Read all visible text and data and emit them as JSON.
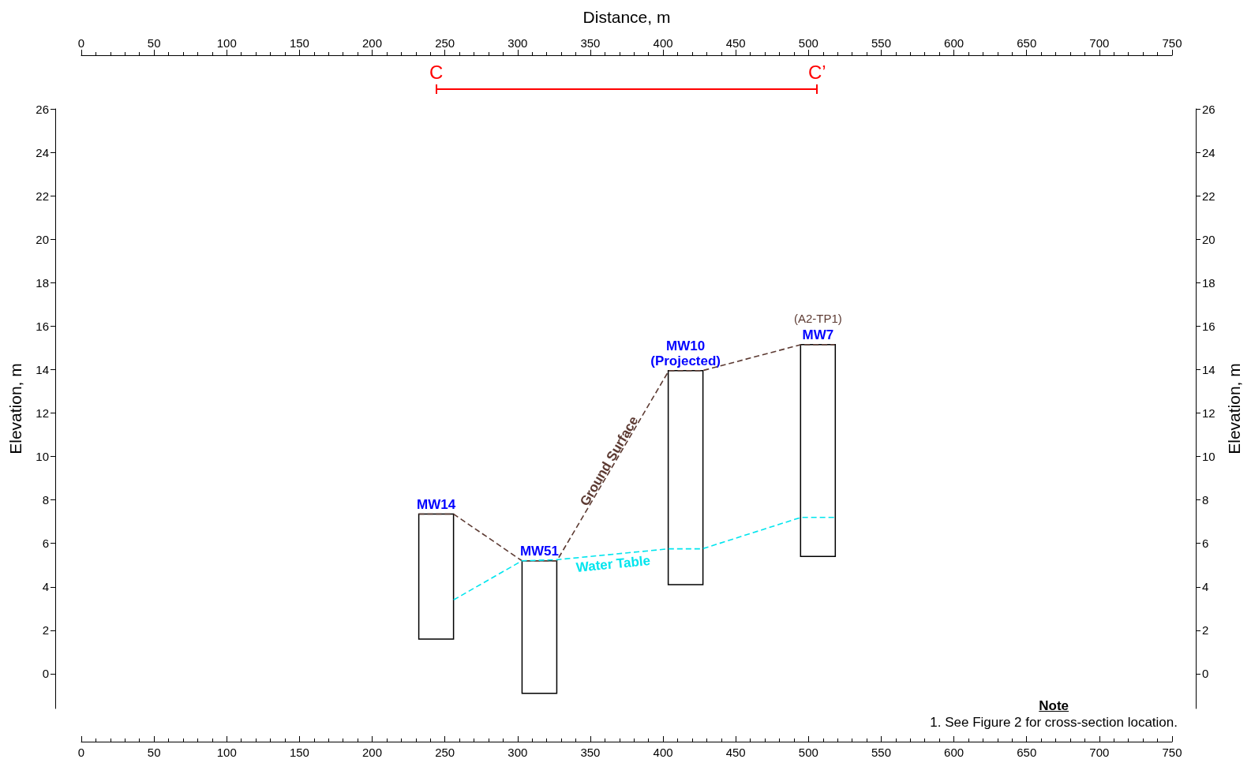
{
  "chart_data": {
    "type": "bar",
    "x2label": "Distance, m",
    "ylabel": "Elevation, m",
    "y2label": "Elevation, m",
    "xlim": [
      0,
      750
    ],
    "xticks": [
      0,
      50,
      100,
      150,
      200,
      250,
      300,
      350,
      400,
      450,
      500,
      550,
      600,
      650,
      700,
      750
    ],
    "x2lim": [
      0,
      750
    ],
    "x2ticks": [
      0,
      50,
      100,
      150,
      200,
      250,
      300,
      350,
      400,
      450,
      500,
      550,
      600,
      650,
      700,
      750
    ],
    "ylim": [
      -1.6,
      26
    ],
    "yticks": [
      0,
      2,
      4,
      6,
      8,
      10,
      12,
      14,
      16,
      18,
      20,
      22,
      24,
      26
    ],
    "y2lim": [
      -1.6,
      26
    ],
    "y2ticks": [
      0,
      2,
      4,
      6,
      8,
      10,
      12,
      14,
      16,
      18,
      20,
      22,
      24,
      26
    ],
    "series": [
      {
        "x": [
          244,
          315,
          415.5,
          506.5
        ],
        "base": [
          1.6,
          -0.9,
          4.1,
          5.4
        ],
        "values": [
          5.75,
          6.1,
          9.85,
          9.75
        ],
        "color": "#000000"
      },
      {
        "type": "line",
        "name": "Ground Surface",
        "color": "#5c3a32",
        "x": [
          232,
          256,
          303,
          327,
          404,
          427,
          495,
          518
        ],
        "values": [
          7.35,
          7.35,
          5.2,
          5.2,
          13.95,
          13.95,
          15.15,
          15.15
        ]
      },
      {
        "type": "line",
        "name": "Water Table",
        "color": "#00e5ee",
        "x": [
          256,
          303,
          327,
          404,
          427,
          495,
          518
        ],
        "values": [
          3.4,
          5.2,
          5.25,
          5.75,
          5.75,
          7.2,
          7.2
        ]
      }
    ],
    "ref_lines": [
      {
        "axis": "x",
        "value": 244,
        "label": "C",
        "color": "#ff0000"
      },
      {
        "axis": "x",
        "value": 506,
        "label": "C’",
        "color": "#ff0000"
      }
    ],
    "line_style": "dashed",
    "marker": "none",
    "grid": false,
    "legend": false,
    "annotations": [
      {
        "text": "MW14",
        "x": 244,
        "y": 7.35
      },
      {
        "text": "MW51",
        "x": 315,
        "y": 5.2
      },
      {
        "text": "MW10\n(Projected)",
        "x": 415.5,
        "y": 13.95
      },
      {
        "text": "MW7",
        "x": 506.5,
        "y": 15.15
      },
      {
        "text": "(A2-TP1)",
        "x": 506.5,
        "y": 15.15
      },
      "Note",
      "1. See Figure 2 for cross-section location."
    ]
  }
}
